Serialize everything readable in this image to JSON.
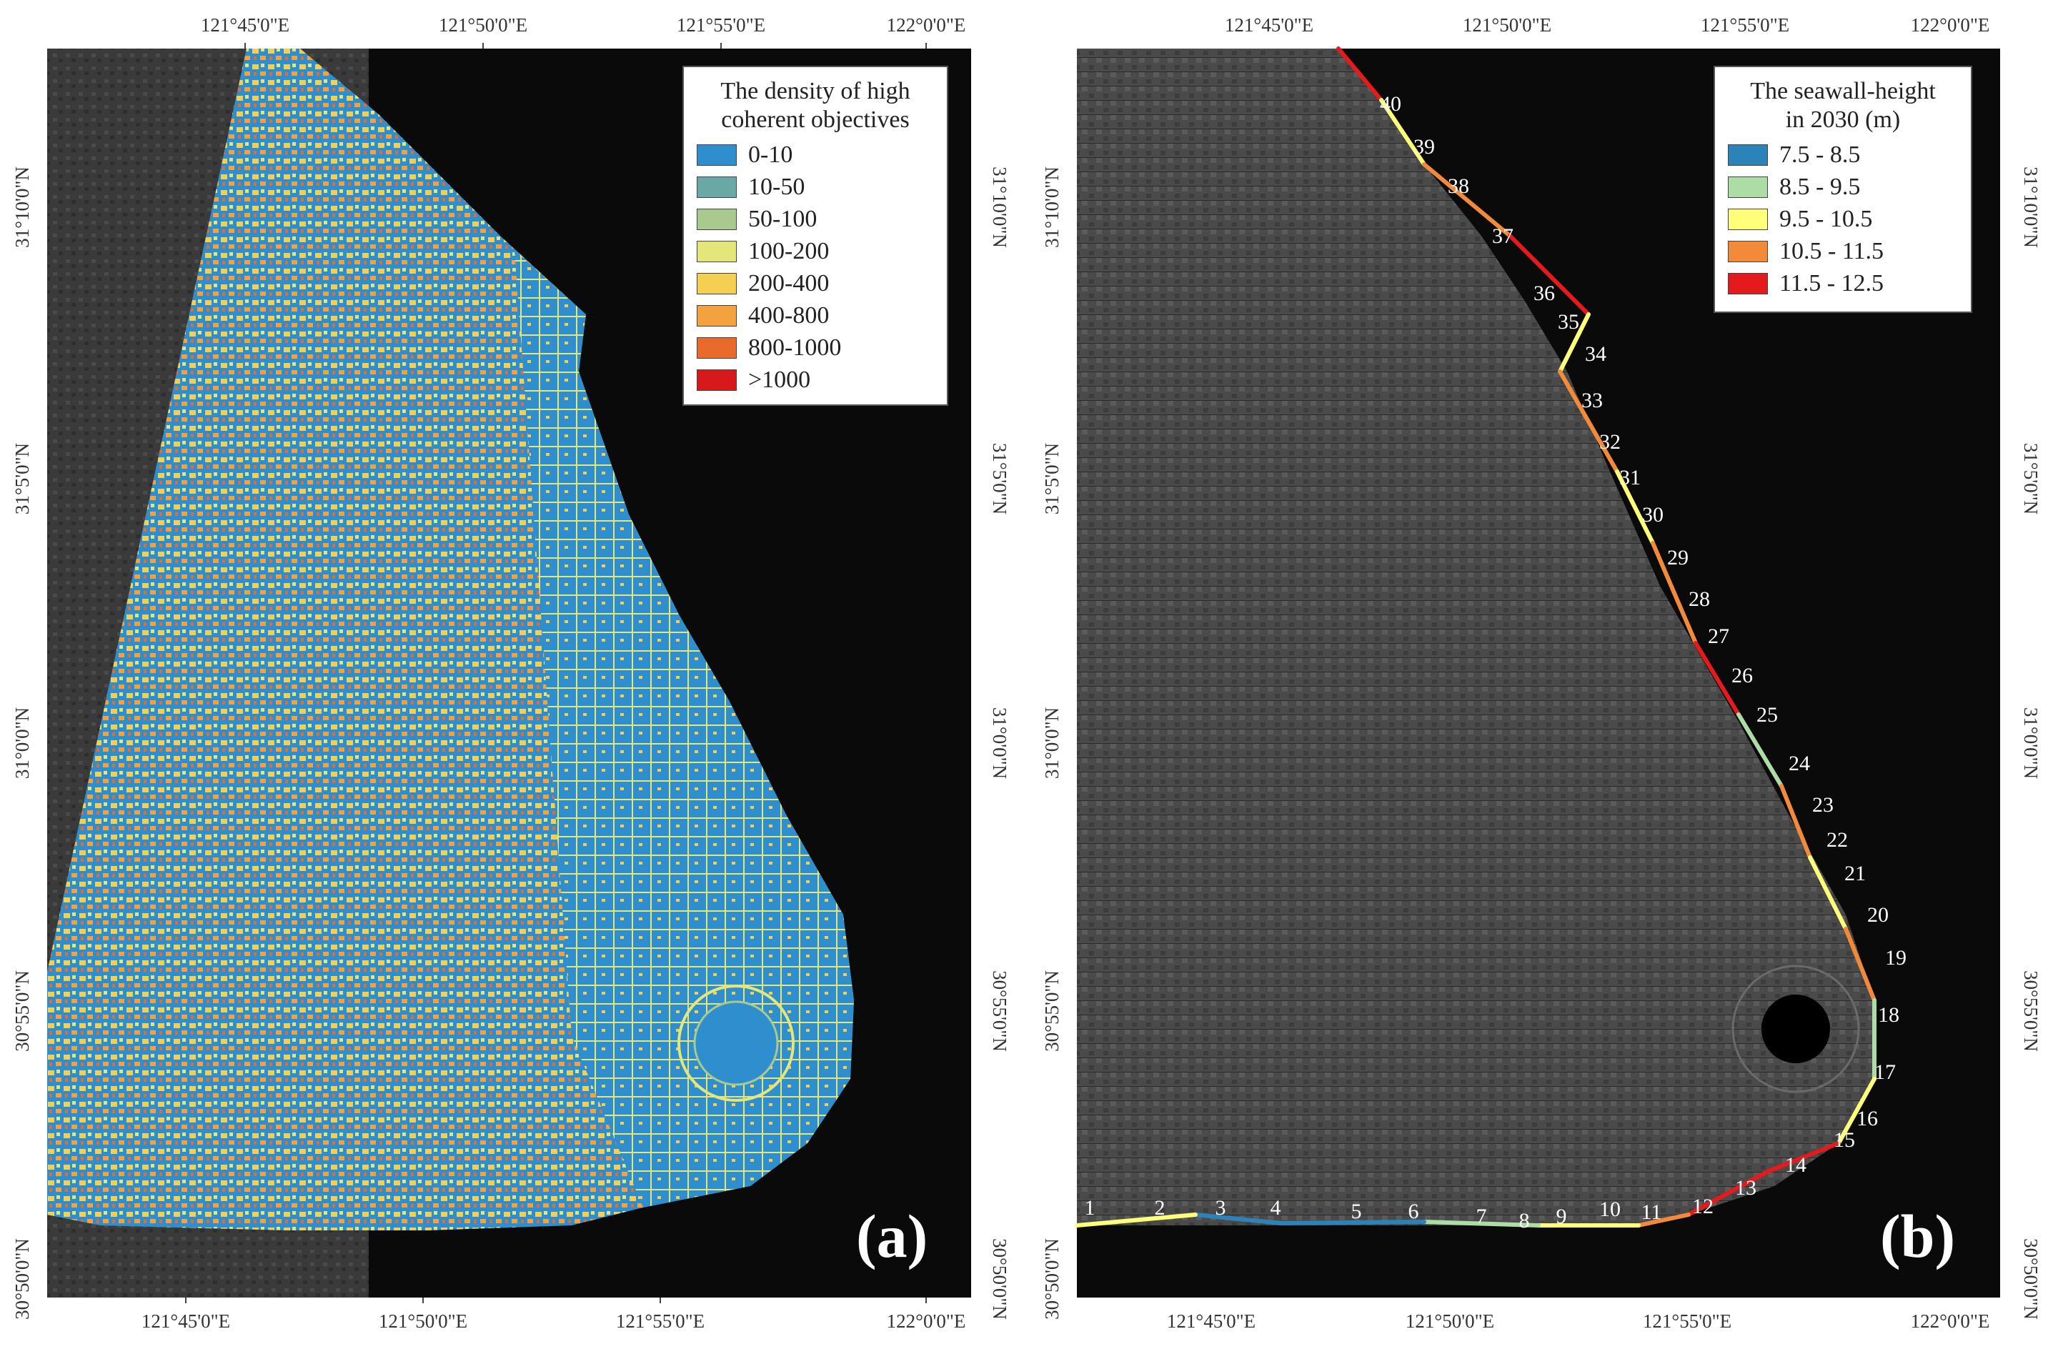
{
  "axis_ticks": {
    "lon_top_a": [
      "121°45'0\"E",
      "121°50'0\"E",
      "121°55'0\"E",
      "122°0'0\"E"
    ],
    "lon_bottom_a": [
      "121°45'0\"E",
      "121°50'0\"E",
      "121°55'0\"E",
      "122°0'0\"E"
    ],
    "lon_top_b": [
      "121°45'0\"E",
      "121°50'0\"E",
      "121°55'0\"E",
      "122°0'0\"E"
    ],
    "lon_bottom_b": [
      "121°45'0\"E",
      "121°50'0\"E",
      "121°55'0\"E",
      "122°0'0\"E"
    ],
    "lat": [
      "31°10'0\"N",
      "31°5'0\"N",
      "31°0'0\"N",
      "30°55'0\"N",
      "30°50'0\"N"
    ]
  },
  "panel_a": {
    "label": "(a)",
    "legend_title_line1": "The density of high",
    "legend_title_line2": "coherent objectives",
    "legend": [
      {
        "label": "0-10",
        "color": "#2f8fce"
      },
      {
        "label": "10-50",
        "color": "#6aa8a6"
      },
      {
        "label": "50-100",
        "color": "#a9c98e"
      },
      {
        "label": "100-200",
        "color": "#e4e67a"
      },
      {
        "label": "200-400",
        "color": "#f5cf52"
      },
      {
        "label": "400-800",
        "color": "#f4a23f"
      },
      {
        "label": "800-1000",
        "color": "#ea6a2b"
      },
      {
        "label": ">1000",
        "color": "#d7191c"
      }
    ]
  },
  "panel_b": {
    "label": "(b)",
    "legend_title_line1": "The seawall-height",
    "legend_title_line2": "in 2030 (m)",
    "legend": [
      {
        "label": "7.5 - 8.5",
        "color": "#2b83ba"
      },
      {
        "label": "8.5 - 9.5",
        "color": "#abdda4"
      },
      {
        "label": "9.5 - 10.5",
        "color": "#ffff7a"
      },
      {
        "label": "10.5 - 11.5",
        "color": "#f28a3a"
      },
      {
        "label": "11.5 - 12.5",
        "color": "#e41a1c"
      }
    ],
    "segment_labels": [
      "1",
      "2",
      "3",
      "4",
      "5",
      "6",
      "7",
      "8",
      "9",
      "10",
      "11",
      "12",
      "13",
      "14",
      "15",
      "16",
      "17",
      "18",
      "19",
      "20",
      "21",
      "22",
      "23",
      "24",
      "25",
      "26",
      "27",
      "28",
      "29",
      "30",
      "31",
      "32",
      "33",
      "34",
      "35",
      "36",
      "37",
      "38",
      "39",
      "40"
    ]
  }
}
